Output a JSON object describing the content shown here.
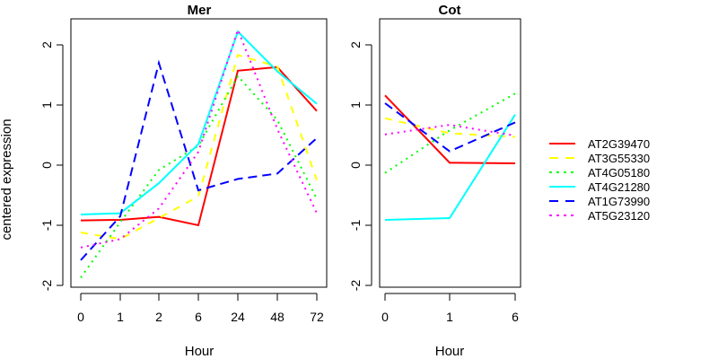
{
  "chart_data": [
    {
      "type": "line",
      "title": "Mer",
      "xlabel": "Hour",
      "ylabel": "centered expression",
      "categories": [
        "0",
        "1",
        "2",
        "6",
        "24",
        "48",
        "72"
      ],
      "ylim": [
        -2,
        2.4
      ],
      "yticks": [
        -2,
        -1,
        0,
        1,
        2
      ],
      "series": [
        {
          "name": "AT2G39470",
          "color": "#ff0000",
          "dash": "solid",
          "values": [
            -0.92,
            -0.91,
            -0.86,
            -1.0,
            1.57,
            1.63,
            0.9
          ]
        },
        {
          "name": "AT3G55330",
          "color": "#ffff00",
          "dash": "dashed",
          "values": [
            -1.12,
            -1.23,
            -0.88,
            -0.52,
            1.83,
            1.64,
            -0.25
          ]
        },
        {
          "name": "AT4G05180",
          "color": "#00ff00",
          "dash": "dotted",
          "values": [
            -1.87,
            -0.95,
            -0.08,
            0.32,
            1.48,
            0.75,
            -0.56
          ]
        },
        {
          "name": "AT4G21280",
          "color": "#00ffff",
          "dash": "solid",
          "values": [
            -0.82,
            -0.8,
            -0.3,
            0.35,
            2.22,
            1.56,
            1.02
          ]
        },
        {
          "name": "AT1G73990",
          "color": "#0000ff",
          "dash": "longdash",
          "values": [
            -1.58,
            -0.85,
            1.7,
            -0.42,
            -0.23,
            -0.14,
            0.45
          ]
        },
        {
          "name": "AT5G23120",
          "color": "#ff00ff",
          "dash": "dotted",
          "values": [
            -1.37,
            -1.23,
            -0.72,
            0.22,
            2.25,
            0.6,
            -0.8
          ]
        }
      ]
    },
    {
      "type": "line",
      "title": "Cot",
      "xlabel": "Hour",
      "ylabel": "",
      "categories": [
        "0",
        "1",
        "6"
      ],
      "ylim": [
        -2,
        2.4
      ],
      "yticks": [
        -2,
        -1,
        0,
        1,
        2
      ],
      "series": [
        {
          "name": "AT2G39470",
          "color": "#ff0000",
          "dash": "solid",
          "values": [
            1.16,
            0.04,
            0.03
          ]
        },
        {
          "name": "AT3G55330",
          "color": "#ffff00",
          "dash": "dashed",
          "values": [
            0.78,
            0.53,
            0.47
          ]
        },
        {
          "name": "AT4G05180",
          "color": "#00ff00",
          "dash": "dotted",
          "values": [
            -0.13,
            0.58,
            1.19
          ]
        },
        {
          "name": "AT4G21280",
          "color": "#00ffff",
          "dash": "solid",
          "values": [
            -0.91,
            -0.88,
            0.84
          ]
        },
        {
          "name": "AT1G73990",
          "color": "#0000ff",
          "dash": "longdash",
          "values": [
            1.03,
            0.23,
            0.71
          ]
        },
        {
          "name": "AT5G23120",
          "color": "#ff00ff",
          "dash": "dotted",
          "values": [
            0.51,
            0.67,
            0.49
          ]
        }
      ]
    }
  ],
  "legend": {
    "placement": "right",
    "entries": [
      "AT2G39470",
      "AT3G55330",
      "AT4G05180",
      "AT4G21280",
      "AT1G73990",
      "AT5G23120"
    ]
  }
}
